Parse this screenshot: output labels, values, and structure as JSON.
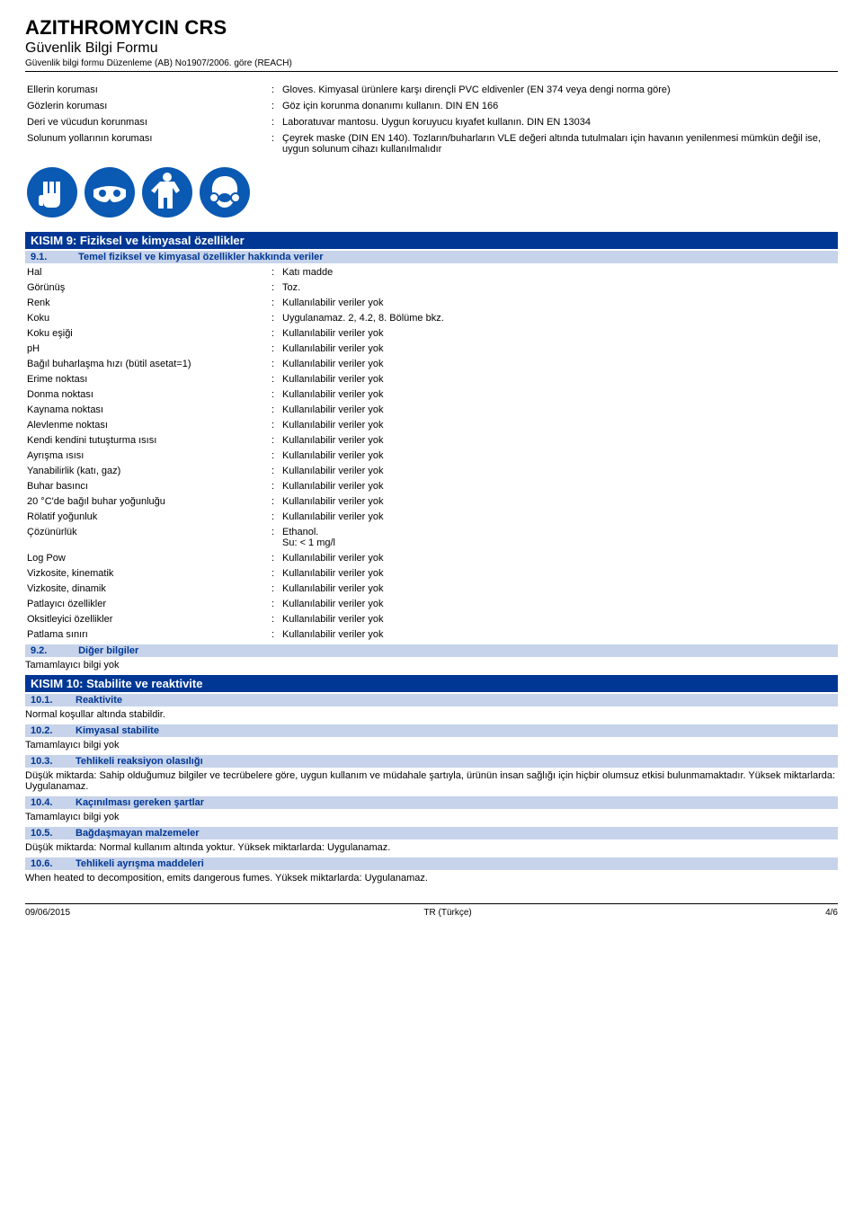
{
  "header": {
    "title": "AZITHROMYCIN CRS",
    "subtitle": "Güvenlik Bilgi Formu",
    "regulation": "Güvenlik bilgi formu Düzenleme (AB) No1907/2006. göre (REACH)"
  },
  "protection": [
    {
      "label": "Ellerin koruması",
      "value": "Gloves. Kimyasal ürünlere karşı dirençli PVC eldivenler (EN 374 veya dengi norma göre)"
    },
    {
      "label": "Gözlerin koruması",
      "value": "Göz için korunma donanımı kullanın. DIN EN 166"
    },
    {
      "label": "Deri ve vücudun korunması",
      "value": "Laboratuvar mantosu. Uygun koruyucu kıyafet kullanın. DIN EN 13034"
    },
    {
      "label": "Solunum yollarının koruması",
      "value": "Çeyrek maske (DIN EN 140). Tozların/buharların VLE değeri altında tutulmaları için havanın yenilenmesi mümkün değil ise, uygun solunum cihazı kullanılmalıdır"
    }
  ],
  "section9": {
    "title": "KISIM 9: Fiziksel ve kimyasal özellikler",
    "sub1": {
      "num": "9.1.",
      "text": "Temel fiziksel ve kimyasal özellikler hakkında veriler"
    },
    "properties": [
      {
        "label": "Hal",
        "value": "Katı madde"
      },
      {
        "label": "Görünüş",
        "value": "Toz."
      },
      {
        "label": "Renk",
        "value": "Kullanılabilir veriler yok"
      },
      {
        "label": "Koku",
        "value": "Uygulanamaz.  2, 4.2, 8. Bölüme bkz."
      },
      {
        "label": "Koku eşiği",
        "value": "Kullanılabilir veriler yok"
      },
      {
        "label": "pH",
        "value": "Kullanılabilir veriler yok"
      },
      {
        "label": "Bağıl buharlaşma hızı (bütil asetat=1)",
        "value": "Kullanılabilir veriler yok"
      },
      {
        "label": "Erime noktası",
        "value": "Kullanılabilir veriler yok"
      },
      {
        "label": "Donma noktası",
        "value": "Kullanılabilir veriler yok"
      },
      {
        "label": "Kaynama noktası",
        "value": "Kullanılabilir veriler yok"
      },
      {
        "label": "Alevlenme noktası",
        "value": "Kullanılabilir veriler yok"
      },
      {
        "label": "Kendi kendini tutuşturma ısısı",
        "value": "Kullanılabilir veriler yok"
      },
      {
        "label": "Ayrışma ısısı",
        "value": "Kullanılabilir veriler yok"
      },
      {
        "label": "Yanabilirlik (katı, gaz)",
        "value": "Kullanılabilir veriler yok"
      },
      {
        "label": "Buhar basıncı",
        "value": "Kullanılabilir veriler yok"
      },
      {
        "label": "20 °C'de bağıl buhar yoğunluğu",
        "value": "Kullanılabilir veriler yok"
      },
      {
        "label": "Rölatif yoğunluk",
        "value": "Kullanılabilir veriler yok"
      },
      {
        "label": "Çözünürlük",
        "value": "Ethanol.\nSu: < 1 mg/l"
      },
      {
        "label": "Log Pow",
        "value": "Kullanılabilir veriler yok"
      },
      {
        "label": "Vizkosite, kinematik",
        "value": "Kullanılabilir veriler yok"
      },
      {
        "label": "Vizkosite, dinamik",
        "value": "Kullanılabilir veriler yok"
      },
      {
        "label": "Patlayıcı özellikler",
        "value": "Kullanılabilir veriler yok"
      },
      {
        "label": "Oksitleyici özellikler",
        "value": "Kullanılabilir veriler yok"
      },
      {
        "label": "Patlama sınırı",
        "value": "Kullanılabilir veriler yok"
      }
    ],
    "sub2": {
      "num": "9.2.",
      "text": "Diğer bilgiler"
    },
    "sub2_body": "Tamamlayıcı bilgi yok"
  },
  "section10": {
    "title": "KISIM 10: Stabilite ve reaktivite",
    "subs": [
      {
        "num": "10.1.",
        "text": "Reaktivite",
        "body": "Normal koşullar altında stabildir."
      },
      {
        "num": "10.2.",
        "text": "Kimyasal stabilite",
        "body": "Tamamlayıcı bilgi yok"
      },
      {
        "num": "10.3.",
        "text": "Tehlikeli reaksiyon olasılığı",
        "body": "Düşük miktarda: Sahip olduğumuz bilgiler ve tecrübelere göre, uygun kullanım ve müdahale şartıyla, ürünün insan sağlığı için hiçbir olumsuz etkisi bulunmamaktadır. Yüksek miktarlarda: Uygulanamaz."
      },
      {
        "num": "10.4.",
        "text": "Kaçınılması gereken şartlar",
        "body": "Tamamlayıcı bilgi yok"
      },
      {
        "num": "10.5.",
        "text": "Bağdaşmayan malzemeler",
        "body": "Düşük miktarda: Normal kullanım altında yoktur. Yüksek miktarlarda: Uygulanamaz."
      },
      {
        "num": "10.6.",
        "text": "Tehlikeli ayrışma maddeleri",
        "body": "When heated to decomposition, emits dangerous fumes. Yüksek miktarlarda: Uygulanamaz."
      }
    ]
  },
  "footer": {
    "date": "09/06/2015",
    "lang": "TR (Türkçe)",
    "page": "4/6"
  },
  "style": {
    "section_bar_bg": "#003794",
    "section_bar_fg": "#ffffff",
    "subhead_bg": "#c6d3ea",
    "subhead_fg": "#003794",
    "picto_bg": "#0a59b3",
    "picto_fg": "#ffffff"
  }
}
